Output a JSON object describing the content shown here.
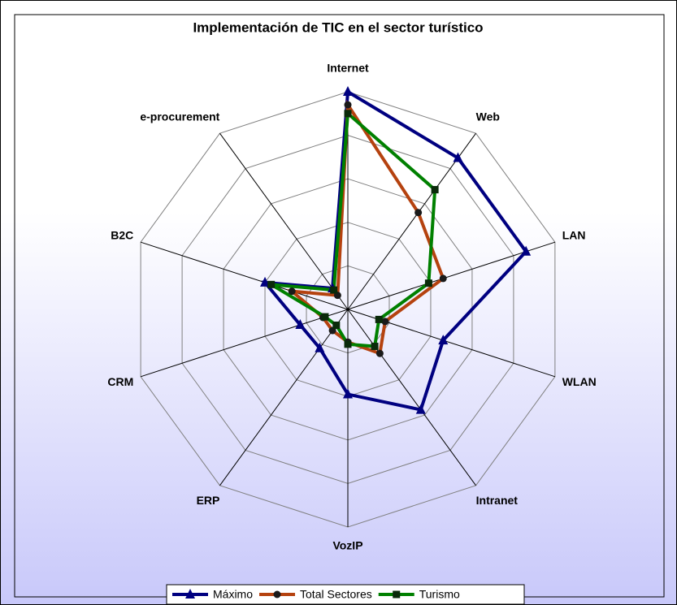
{
  "chart_data": {
    "type": "radar",
    "title": "Implementación de TIC en el sector turístico",
    "categories": [
      "Internet",
      "Web",
      "LAN",
      "WLAN",
      "Intranet",
      "VozIP",
      "ERP",
      "CRM",
      "B2C",
      "e-procurement"
    ],
    "ylim": [
      0,
      100
    ],
    "yticks": [
      0,
      20,
      40,
      60,
      80,
      100
    ],
    "grid": true,
    "legend": "bottom",
    "series": [
      {
        "name": "Máximo",
        "color": "#000080",
        "marker": "triangle",
        "values": [
          100,
          86,
          86,
          46,
          57,
          39,
          22,
          23,
          40,
          12
        ]
      },
      {
        "name": "Total Sectores",
        "color": "#b5420f",
        "marker": "circle",
        "values": [
          94,
          55,
          46,
          18,
          25,
          15,
          12,
          12,
          27,
          8
        ]
      },
      {
        "name": "Turismo",
        "color": "#008000",
        "marker": "square",
        "values": [
          90,
          68,
          39,
          15,
          21,
          16,
          9,
          11,
          37,
          11
        ]
      }
    ]
  }
}
